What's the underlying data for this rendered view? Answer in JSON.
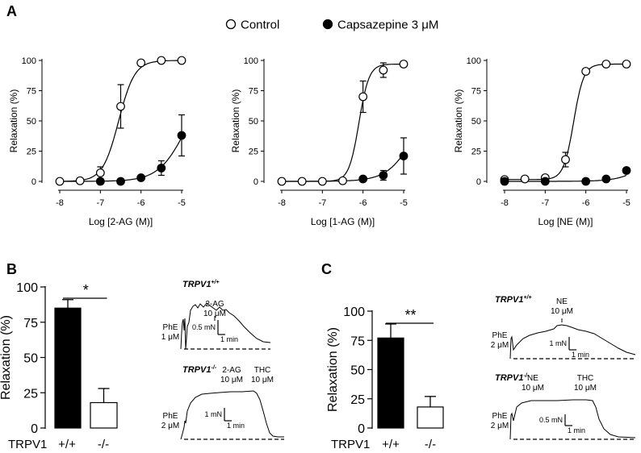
{
  "legend": {
    "entries": [
      {
        "label": "Control",
        "marker": "open-circle"
      },
      {
        "label": "Capsazepine 3 μM",
        "marker": "filled-circle"
      }
    ]
  },
  "tracings": {
    "B": {
      "wt_label": "TRPV1",
      "wt_sup": "+/+",
      "wt": {
        "phe": [
          "PhE",
          "1 μM"
        ],
        "drug": [
          "2-AG",
          "10 μM"
        ],
        "scale": [
          "0.5 mN",
          "1 min"
        ]
      },
      "ko_label": "TRPV1",
      "ko_sup": "-/-",
      "ko": {
        "phe": [
          "PhE",
          "2 μM"
        ],
        "drug": [
          "2-AG",
          "10 μM"
        ],
        "thc": [
          "THC",
          "10 μM"
        ],
        "scale": [
          "1 mN",
          "1 min"
        ]
      }
    },
    "C": {
      "wt_label": "TRPV1",
      "wt_sup": "+/+",
      "wt": {
        "phe": [
          "PhE",
          "2 μM"
        ],
        "drug": [
          "NE",
          "10 μM"
        ],
        "scale": [
          "1 mN",
          "1 min"
        ]
      },
      "ko_label": "TRPV1",
      "ko_sup": "-/-",
      "ko": {
        "phe": [
          "PhE",
          "2 μM"
        ],
        "drug": [
          "NE",
          "10 μM"
        ],
        "thc": [
          "THC",
          "10 μM"
        ],
        "scale": [
          "0.5 mN",
          "1 min"
        ]
      }
    }
  },
  "chart_data": [
    {
      "panel": "A",
      "type": "line",
      "xlabel": "Log [2-AG (M)]",
      "ylabel": "Relaxation (%)",
      "xlim": [
        -8,
        -5
      ],
      "ylim": [
        0,
        100
      ],
      "xticks": [
        "-8",
        "-7",
        "-6",
        "-5"
      ],
      "yticks": [
        "0",
        "25",
        "50",
        "75",
        "100"
      ],
      "series": [
        {
          "name": "Control",
          "marker": "open-circle",
          "x": [
            -8,
            -7.5,
            -7,
            -6.5,
            -6,
            -5.5,
            -5
          ],
          "y": [
            0,
            0.5,
            7,
            62,
            98,
            100,
            100
          ],
          "err": [
            0,
            0,
            5,
            18,
            2,
            0,
            0
          ]
        },
        {
          "name": "Capsazepine 3 μM",
          "marker": "filled-circle",
          "x": [
            -7,
            -6.5,
            -6,
            -5.5,
            -5
          ],
          "y": [
            0,
            0,
            3,
            11,
            38
          ],
          "err": [
            0,
            0,
            1.5,
            6,
            17
          ]
        }
      ]
    },
    {
      "type": "line",
      "xlabel": "Log [1-AG (M)]",
      "ylabel": "Relaxation (%)",
      "xlim": [
        -8,
        -5
      ],
      "ylim": [
        0,
        100
      ],
      "xticks": [
        "-8",
        "-7",
        "-6",
        "-5"
      ],
      "yticks": [
        "0",
        "25",
        "50",
        "75",
        "100"
      ],
      "series": [
        {
          "name": "Control",
          "marker": "open-circle",
          "x": [
            -8,
            -7.5,
            -7,
            -6.5,
            -6,
            -5.5,
            -5
          ],
          "y": [
            0,
            0,
            0,
            0.5,
            70,
            92,
            97
          ],
          "err": [
            0,
            0,
            0,
            0,
            13,
            6,
            2
          ]
        },
        {
          "name": "Capsazepine 3 μM",
          "marker": "filled-circle",
          "x": [
            -6,
            -5.5,
            -5
          ],
          "y": [
            2,
            5,
            21
          ],
          "err": [
            1,
            4,
            15
          ]
        }
      ]
    },
    {
      "type": "line",
      "xlabel": "Log [NE (M)]",
      "ylabel": "Relaxation (%)",
      "xlim": [
        -8,
        -5
      ],
      "ylim": [
        0,
        100
      ],
      "xticks": [
        "-8",
        "-7",
        "-6",
        "-5"
      ],
      "yticks": [
        "0",
        "25",
        "50",
        "75",
        "100"
      ],
      "series": [
        {
          "name": "Control",
          "marker": "open-circle",
          "x": [
            -8,
            -7.5,
            -7,
            -6.5,
            -6,
            -5.5,
            -5
          ],
          "y": [
            1.5,
            2,
            3,
            18,
            91,
            97,
            97
          ],
          "err": [
            0,
            0,
            0,
            6,
            2,
            0,
            0
          ]
        },
        {
          "name": "Capsazepine 3 μM",
          "marker": "filled-circle",
          "x": [
            -8,
            -7,
            -6,
            -5.5,
            -5
          ],
          "y": [
            0,
            0,
            0,
            2,
            9
          ],
          "err": [
            0,
            0,
            0,
            0,
            1
          ]
        }
      ]
    },
    {
      "panel": "B",
      "type": "bar",
      "ylabel": "Relaxation (%)",
      "ylim": [
        0,
        100
      ],
      "yticks": [
        "0",
        "25",
        "50",
        "75",
        "100"
      ],
      "group_label": "TRPV1",
      "categories": [
        "+/+",
        "-/-"
      ],
      "values": [
        85,
        18
      ],
      "errors": [
        6,
        10
      ],
      "fills": [
        "#000000",
        "#ffffff"
      ],
      "significance": "*"
    },
    {
      "panel": "C",
      "type": "bar",
      "ylabel": "Relaxation (%)",
      "ylim": [
        0,
        100
      ],
      "yticks": [
        "0",
        "25",
        "50",
        "75",
        "100"
      ],
      "group_label": "TRPV1",
      "categories": [
        "+/+",
        "-/-"
      ],
      "values": [
        77,
        18
      ],
      "errors": [
        12,
        9
      ],
      "fills": [
        "#000000",
        "#ffffff"
      ],
      "significance": "**"
    }
  ]
}
